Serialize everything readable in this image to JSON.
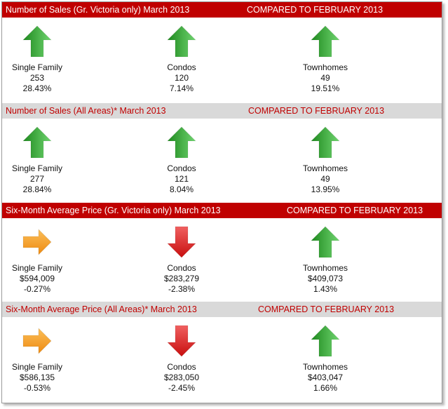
{
  "sections": [
    {
      "title": "Number of Sales (Gr. Victoria only) March 2013",
      "compared": "COMPARED TO FEBRUARY 2013",
      "style": "red",
      "items": [
        {
          "name": "Single Family",
          "value": "253",
          "change": "28.43%",
          "trend": "up"
        },
        {
          "name": "Condos",
          "value": "120",
          "change": "7.14%",
          "trend": "up"
        },
        {
          "name": "Townhomes",
          "value": "49",
          "change": "19.51%",
          "trend": "up"
        }
      ]
    },
    {
      "title": "Number of Sales (All Areas)* March 2013",
      "compared": "COMPARED TO FEBRUARY 2013",
      "style": "grey",
      "items": [
        {
          "name": "Single Family",
          "value": "277",
          "change": "28.84%",
          "trend": "up"
        },
        {
          "name": "Condos",
          "value": "121",
          "change": "8.04%",
          "trend": "up"
        },
        {
          "name": "Townhomes",
          "value": "49",
          "change": "13.95%",
          "trend": "up"
        }
      ]
    },
    {
      "title": "Six-Month Average Price (Gr. Victoria only)  March 2013",
      "compared": "COMPARED TO FEBRUARY 2013",
      "style": "red",
      "items": [
        {
          "name": "Single Family",
          "value": "$594,009",
          "change": "-0.27%",
          "trend": "flat"
        },
        {
          "name": "Condos",
          "value": "$283,279",
          "change": "-2.38%",
          "trend": "down"
        },
        {
          "name": "Townhomes",
          "value": "$409,073",
          "change": "1.43%",
          "trend": "up"
        }
      ]
    },
    {
      "title": "Six-Month Average Price (All Areas)* March 2013",
      "compared": "COMPARED TO FEBRUARY 2013",
      "style": "grey",
      "items": [
        {
          "name": "Single Family",
          "value": "$586,135",
          "change": "-0.53%",
          "trend": "flat"
        },
        {
          "name": "Condos",
          "value": "$283,050",
          "change": "-2.45%",
          "trend": "down"
        },
        {
          "name": "Townhomes",
          "value": "$403,047",
          "change": "1.66%",
          "trend": "up"
        }
      ]
    }
  ],
  "colors": {
    "red_header_bg": "#c00000",
    "grey_header_bg": "#d9d9d9",
    "up_arrow": "#2e9f2e",
    "down_arrow": "#e0191b",
    "flat_arrow": "#f39a1e"
  },
  "icons": {
    "up": "up-arrow-icon",
    "down": "down-arrow-icon",
    "flat": "right-arrow-icon"
  }
}
